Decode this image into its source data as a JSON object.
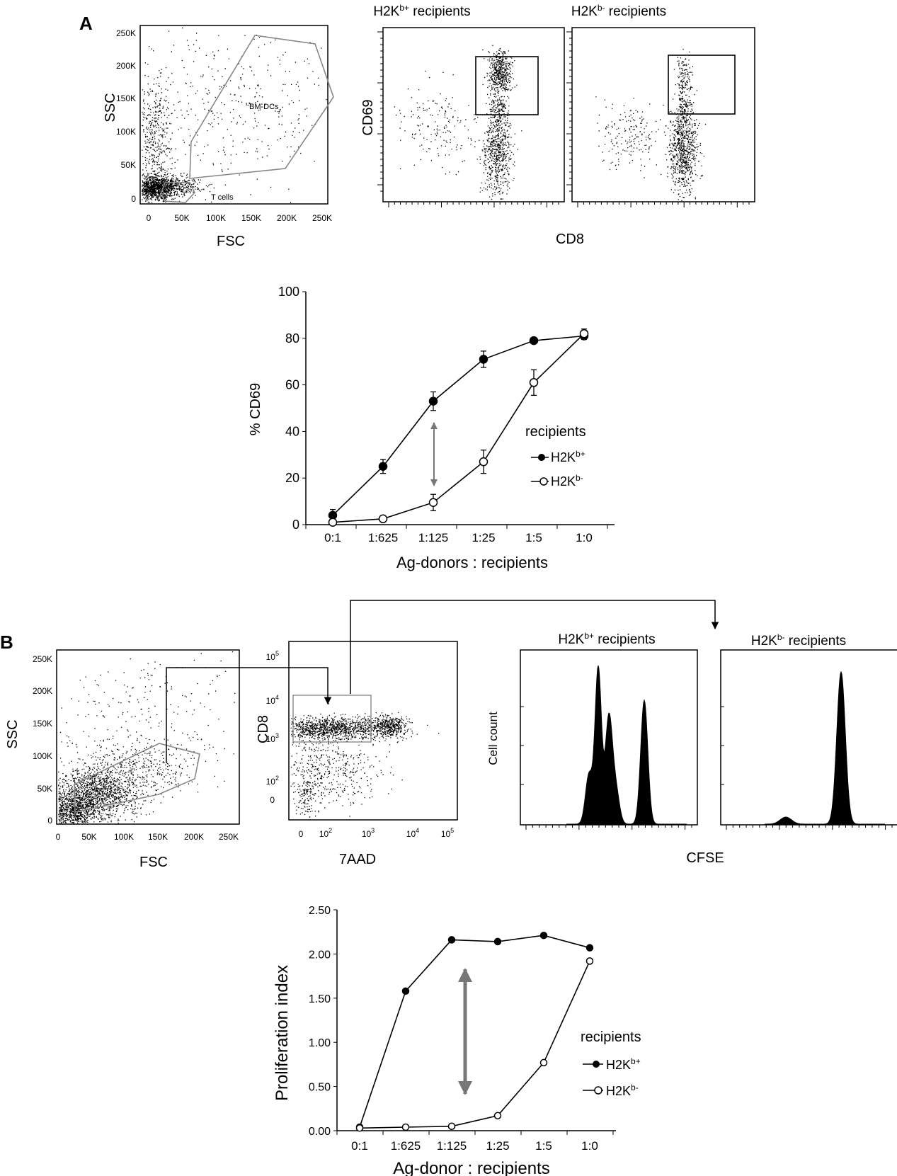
{
  "panel_labels": {
    "a": "A",
    "b": "B"
  },
  "colors": {
    "ink": "#000000",
    "gate": "#8a8a8a",
    "open": "#ffffff"
  },
  "panelA": {
    "scatter": {
      "ylabel": "SSC",
      "xlabel": "FSC",
      "yticks": [
        "250K",
        "200K",
        "150K",
        "100K",
        "50K",
        "0"
      ],
      "xticks": [
        "0",
        "50K",
        "100K",
        "150K",
        "200K",
        "250K"
      ],
      "gate_bm": "BM-DCs",
      "gate_t": "T cells"
    },
    "flow_titles": [
      {
        "base": "H2K",
        "sup": "b+",
        "rest": " recipients"
      },
      {
        "base": "H2K",
        "sup": "b-",
        "rest": "  recipients"
      }
    ],
    "flow_ylabel": "CD69",
    "flow_xlabel": "CD8"
  },
  "panelB": {
    "scatter": {
      "ylabel": "SSC",
      "xlabel": "FSC",
      "yticks": [
        "250K",
        "200K",
        "150K",
        "100K",
        "50K",
        "0"
      ],
      "xticks": [
        "0",
        "50K",
        "100K",
        "150K",
        "200K",
        "250K"
      ]
    },
    "cd8": {
      "ylabel": "CD8",
      "xlabel": "7AAD",
      "yticks": [
        "10",
        "10",
        "10",
        "10",
        "0"
      ],
      "ysup": [
        "5",
        "4",
        "3",
        "2",
        ""
      ],
      "xticks": [
        "0",
        "10",
        "10",
        "10",
        "10"
      ],
      "xsup": [
        "",
        "2",
        "3",
        "4",
        "5"
      ]
    },
    "hist_titles": [
      {
        "base": "H2K",
        "sup": "b+",
        "rest": "  recipients"
      },
      {
        "base": "H2K",
        "sup": "b-",
        "rest": "  recipients"
      }
    ],
    "hist_ylabel": "Cell count",
    "hist_xlabel": "CFSE"
  },
  "chart_data": [
    {
      "type": "line",
      "xlabel": "Ag-donors : recipients",
      "ylabel": "% CD69",
      "ylim": [
        0,
        100
      ],
      "yticks": [
        "0",
        "20",
        "40",
        "60",
        "80",
        "100"
      ],
      "categories": [
        "0:1",
        "1:625",
        "1:125",
        "1:25",
        "1:5",
        "1:0"
      ],
      "legend_title": "recipients",
      "series": [
        {
          "name_base": "H2K",
          "name_sup": "b+",
          "marker": "filled",
          "values": [
            4,
            25,
            53,
            71,
            79,
            81
          ],
          "errors": [
            2.5,
            3,
            4,
            3.5,
            1,
            1.5
          ]
        },
        {
          "name_base": "H2K",
          "name_sup": "b-",
          "marker": "open",
          "values": [
            1,
            2.5,
            9.5,
            27,
            61,
            82
          ],
          "errors": [
            1,
            1,
            3.5,
            5,
            5.5,
            2
          ]
        }
      ],
      "annotation": "double-headed arrow between series at 1:125"
    },
    {
      "type": "line",
      "xlabel": "Ag-donor : recipients",
      "ylabel": "Proliferation index",
      "ylim": [
        0,
        2.5
      ],
      "yticks": [
        "0.00",
        "0.50",
        "1.00",
        "1.50",
        "2.00",
        "2.50"
      ],
      "categories": [
        "0:1",
        "1:625",
        "1:125",
        "1:25",
        "1:5",
        "1:0"
      ],
      "legend_title": "recipients",
      "series": [
        {
          "name_base": "H2K",
          "name_sup": "b+",
          "marker": "filled",
          "values": [
            0.04,
            1.58,
            2.16,
            2.14,
            2.21,
            2.07
          ]
        },
        {
          "name_base": "H2K",
          "name_sup": "b-",
          "marker": "open",
          "values": [
            0.03,
            0.04,
            0.05,
            0.17,
            0.77,
            1.92
          ]
        }
      ],
      "annotation": "double-headed arrow between series at 1:125"
    }
  ]
}
